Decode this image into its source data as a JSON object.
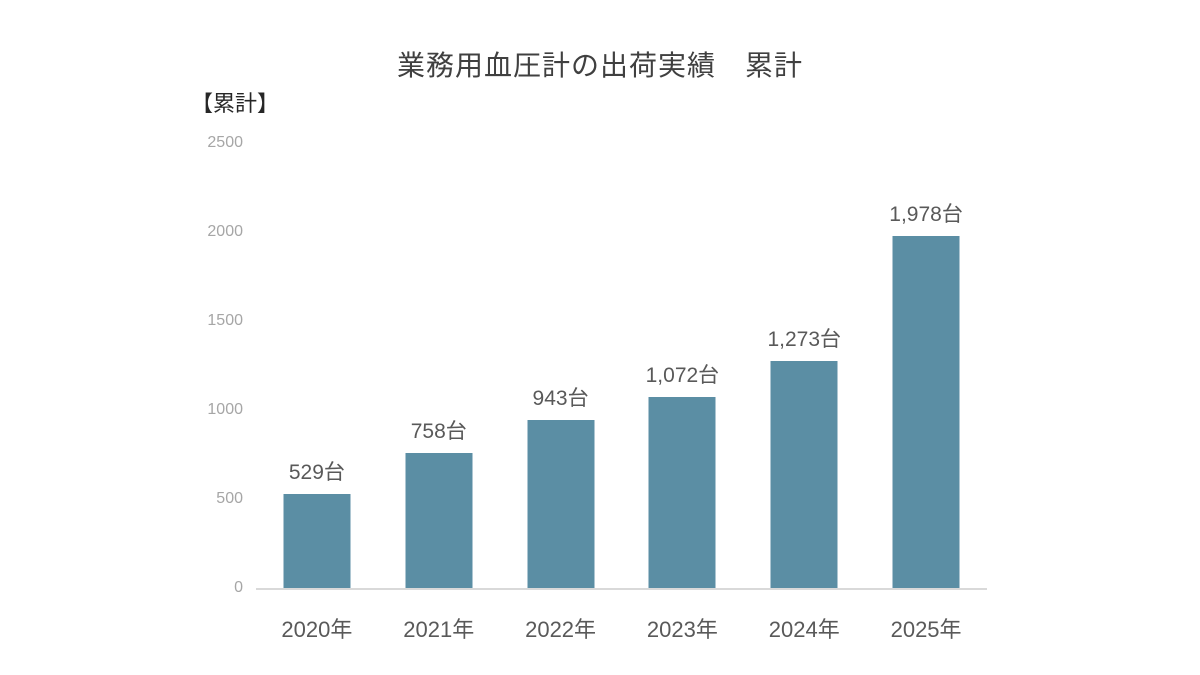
{
  "chart_data": {
    "type": "bar",
    "title": "業務用血圧計の出荷実績　累計",
    "unit_label": "【累計】",
    "categories": [
      "2020年",
      "2021年",
      "2022年",
      "2023年",
      "2024年",
      "2025年"
    ],
    "values": [
      529,
      758,
      943,
      1072,
      1273,
      1978
    ],
    "data_labels": [
      "529台",
      "758台",
      "943台",
      "1,072台",
      "1,273台",
      "1,978台"
    ],
    "ylim": [
      0,
      2500
    ],
    "y_ticks": [
      0,
      500,
      1000,
      1500,
      2000,
      2500
    ],
    "xlabel": "",
    "ylabel": "",
    "grid": false,
    "legend": "none",
    "colors": {
      "bar": "#5b8ea4",
      "title_text": "#404040",
      "unit_text": "#262626",
      "tick_text": "#a6a6a6",
      "value_label_text": "#595959",
      "category_text": "#595959",
      "axis_line": "#d9d9d9",
      "background": "#ffffff"
    }
  }
}
